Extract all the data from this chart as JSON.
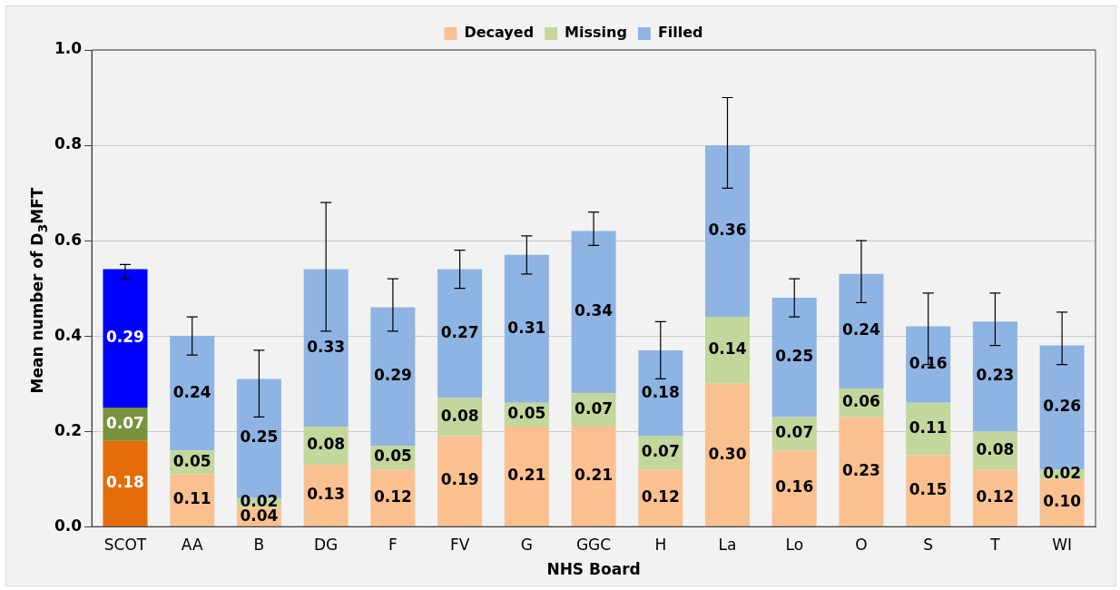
{
  "chart_data": {
    "type": "bar",
    "stacked": true,
    "xlabel": "NHS Board",
    "ylabel": "Mean number of D$_{3}$MFT",
    "categories": [
      "SCOT",
      "AA",
      "B",
      "DG",
      "F",
      "FV",
      "G",
      "GGC",
      "H",
      "La",
      "Lo",
      "O",
      "S",
      "T",
      "WI"
    ],
    "series": [
      {
        "name": "Decayed",
        "color": "#fac090",
        "colors": [
          "#e46c0a",
          "#fac090",
          "#fac090",
          "#fac090",
          "#fac090",
          "#fac090",
          "#fac090",
          "#fac090",
          "#fac090",
          "#fac090",
          "#fac090",
          "#fac090",
          "#fac090",
          "#fac090",
          "#fac090"
        ],
        "values": [
          0.18,
          0.11,
          0.04,
          0.13,
          0.12,
          0.19,
          0.21,
          0.21,
          0.12,
          0.3,
          0.16,
          0.23,
          0.15,
          0.12,
          0.1
        ],
        "value_labels": [
          "0.18",
          "0.11",
          "0.04",
          "0.13",
          "0.12",
          "0.19",
          "0.21",
          "0.21",
          "0.12",
          "0.30",
          "0.16",
          "0.23",
          "0.15",
          "0.12",
          "0.10"
        ]
      },
      {
        "name": "Missing",
        "color": "#c3d69b",
        "colors": [
          "#77933c",
          "#c3d69b",
          "#c3d69b",
          "#c3d69b",
          "#c3d69b",
          "#c3d69b",
          "#c3d69b",
          "#c3d69b",
          "#c3d69b",
          "#c3d69b",
          "#c3d69b",
          "#c3d69b",
          "#c3d69b",
          "#c3d69b",
          "#c3d69b"
        ],
        "values": [
          0.07,
          0.05,
          0.02,
          0.08,
          0.05,
          0.08,
          0.05,
          0.07,
          0.07,
          0.14,
          0.07,
          0.06,
          0.11,
          0.08,
          0.02
        ],
        "value_labels": [
          "0.07",
          "0.05",
          "0.02",
          "0.08",
          "0.05",
          "0.08",
          "0.05",
          "0.07",
          "0.07",
          "0.14",
          "0.07",
          "0.06",
          "0.11",
          "0.08",
          "0.02"
        ]
      },
      {
        "name": "Filled",
        "color": "#8eb4e3",
        "colors": [
          "#0000ff",
          "#8eb4e3",
          "#8eb4e3",
          "#8eb4e3",
          "#8eb4e3",
          "#8eb4e3",
          "#8eb4e3",
          "#8eb4e3",
          "#8eb4e3",
          "#8eb4e3",
          "#8eb4e3",
          "#8eb4e3",
          "#8eb4e3",
          "#8eb4e3",
          "#8eb4e3"
        ],
        "values": [
          0.29,
          0.24,
          0.25,
          0.33,
          0.29,
          0.27,
          0.31,
          0.34,
          0.18,
          0.36,
          0.25,
          0.24,
          0.16,
          0.23,
          0.26
        ],
        "value_labels": [
          "0.29",
          "0.24",
          "0.25",
          "0.33",
          "0.29",
          "0.27",
          "0.31",
          "0.34",
          "0.18",
          "0.36",
          "0.25",
          "0.24",
          "0.16",
          "0.23",
          "0.26"
        ],
        "errors": [
          [
            0.52,
            0.55
          ],
          [
            0.36,
            0.44
          ],
          [
            0.23,
            0.37
          ],
          [
            0.41,
            0.68
          ],
          [
            0.41,
            0.52
          ],
          [
            0.5,
            0.58
          ],
          [
            0.53,
            0.61
          ],
          [
            0.59,
            0.66
          ],
          [
            0.31,
            0.43
          ],
          [
            0.71,
            0.9
          ],
          [
            0.44,
            0.52
          ],
          [
            0.47,
            0.6
          ],
          [
            0.34,
            0.49
          ],
          [
            0.38,
            0.49
          ],
          [
            0.34,
            0.45
          ]
        ]
      }
    ],
    "ylim": [
      0,
      1
    ],
    "yticks": [
      {
        "value": 0,
        "label": "0.0"
      },
      {
        "value": 0.2,
        "label": "0.2"
      },
      {
        "value": 0.4,
        "label": "0.4"
      },
      {
        "value": 0.6,
        "label": "0.6"
      },
      {
        "value": 0.8,
        "label": "0.8"
      },
      {
        "value": 1,
        "label": "1.0"
      }
    ],
    "grid": "y",
    "legend": "top"
  }
}
